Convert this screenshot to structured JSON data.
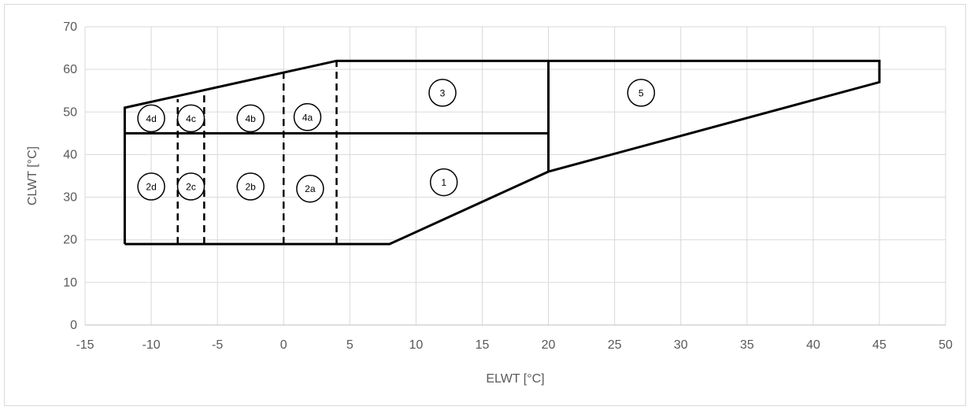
{
  "chart_data": {
    "type": "line",
    "title": "",
    "xlabel": "ELWT [°C]",
    "ylabel": "CLWT [°C]",
    "xlim": [
      -15,
      50
    ],
    "ylim": [
      0,
      70
    ],
    "x_ticks": [
      -15,
      -10,
      -5,
      0,
      5,
      10,
      15,
      20,
      25,
      30,
      35,
      40,
      45,
      50
    ],
    "y_ticks": [
      0,
      10,
      20,
      30,
      40,
      50,
      60,
      70
    ],
    "grid": true,
    "legend": "none",
    "colors": {
      "line": "#000000",
      "grid": "#d9d9d9",
      "text": "#595959"
    },
    "envelope": {
      "name": "operating envelope",
      "x": [
        -12,
        -12,
        4,
        45,
        45,
        20,
        8,
        -12
      ],
      "y": [
        19,
        51,
        62,
        62,
        57,
        36,
        19,
        19
      ]
    },
    "solid_lines": [
      {
        "x": [
          -12,
          20
        ],
        "y": [
          45,
          45
        ]
      },
      {
        "x": [
          20,
          20
        ],
        "y": [
          36,
          62
        ]
      }
    ],
    "dashed_lines": [
      {
        "x": [
          -8,
          -8
        ],
        "y": [
          19,
          53
        ]
      },
      {
        "x": [
          -6,
          -6
        ],
        "y": [
          19,
          55
        ]
      },
      {
        "x": [
          0,
          0
        ],
        "y": [
          19,
          59
        ]
      },
      {
        "x": [
          4,
          4
        ],
        "y": [
          19,
          62
        ]
      }
    ],
    "zones": [
      {
        "label": "4d",
        "x": -10,
        "y": 48.5
      },
      {
        "label": "4c",
        "x": -7,
        "y": 48.5
      },
      {
        "label": "4b",
        "x": -2.5,
        "y": 48.5
      },
      {
        "label": "4a",
        "x": 1.8,
        "y": 48.8
      },
      {
        "label": "3",
        "x": 12,
        "y": 54.5
      },
      {
        "label": "5",
        "x": 27,
        "y": 54.5
      },
      {
        "label": "2d",
        "x": -10,
        "y": 32.5
      },
      {
        "label": "2c",
        "x": -7,
        "y": 32.5
      },
      {
        "label": "2b",
        "x": -2.5,
        "y": 32.5
      },
      {
        "label": "2a",
        "x": 2,
        "y": 32
      },
      {
        "label": "1",
        "x": 12.1,
        "y": 33.5
      }
    ]
  }
}
